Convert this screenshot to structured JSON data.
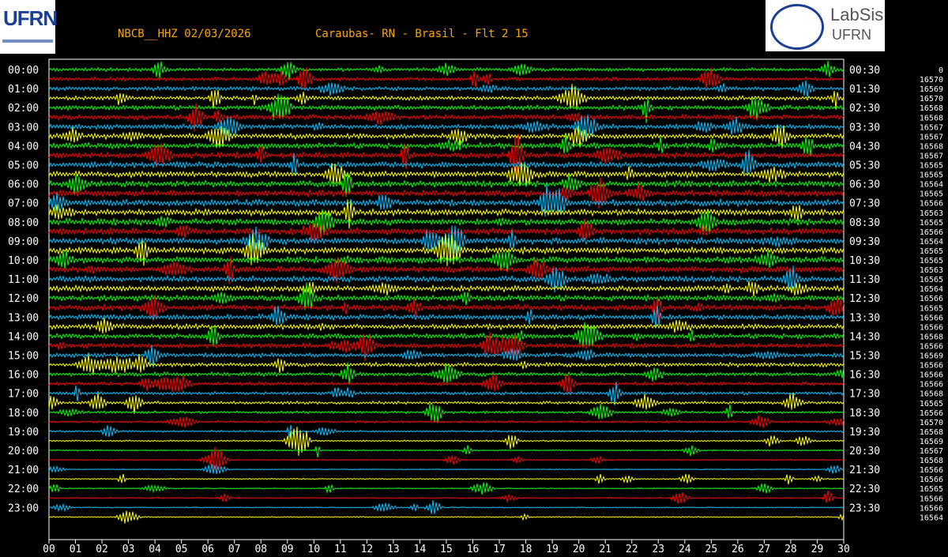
{
  "header": {
    "station": "NBCB__HHZ 02/03/2026",
    "location": "Caraubas- RN - Brasil - Flt 2 15"
  },
  "logos": {
    "left": "UFRN",
    "right_top": "LabSis",
    "right_bottom": "UFRN"
  },
  "colors": {
    "background": "#000000",
    "header_text": "#ffa500",
    "trace_cycle": [
      "#00ff00",
      "#ff0000",
      "#00bfff",
      "#ffff00"
    ],
    "frame": "#ffffff"
  },
  "chart_data": {
    "type": "line",
    "description_type": "helicorder",
    "left_hour_labels": [
      "00:00",
      "01:00",
      "02:00",
      "03:00",
      "04:00",
      "05:00",
      "06:00",
      "07:00",
      "08:00",
      "09:00",
      "10:00",
      "11:00",
      "12:00",
      "13:00",
      "14:00",
      "15:00",
      "16:00",
      "17:00",
      "18:00",
      "19:00",
      "20:00",
      "21:00",
      "22:00",
      "23:00"
    ],
    "right_hour_labels": [
      "00:30",
      "01:30",
      "02:30",
      "03:30",
      "04:30",
      "05:30",
      "06:30",
      "07:30",
      "08:30",
      "09:30",
      "10:30",
      "11:30",
      "12:30",
      "13:30",
      "14:30",
      "15:30",
      "16:30",
      "17:30",
      "18:30",
      "19:30",
      "20:30",
      "21:30",
      "22:30",
      "23:30"
    ],
    "minute_ticks": [
      "00",
      "01",
      "02",
      "03",
      "04",
      "05",
      "06",
      "07",
      "08",
      "09",
      "10",
      "11",
      "12",
      "13",
      "14",
      "15",
      "16",
      "17",
      "18",
      "19",
      "20",
      "21",
      "22",
      "23",
      "24",
      "25",
      "26",
      "27",
      "28",
      "29",
      "30"
    ],
    "xlim": [
      0,
      30
    ],
    "counts": [
      "0",
      "16570",
      "16569",
      "16570",
      "16568",
      "16568",
      "16567",
      "16567",
      "16568",
      "16567",
      "16565",
      "16565",
      "16564",
      "16565",
      "16566",
      "16563",
      "16565",
      "16566",
      "16564",
      "16565",
      "16565",
      "16563",
      "16565",
      "16564",
      "16566",
      "16565",
      "16566",
      "16566",
      "16568",
      "16566",
      "16569",
      "16566",
      "16566",
      "16566",
      "16568",
      "16565",
      "16566",
      "16570",
      "16568",
      "16569",
      "16567",
      "16568",
      "16566",
      "16566",
      "16565",
      "16566",
      "16566",
      "16564"
    ]
  }
}
